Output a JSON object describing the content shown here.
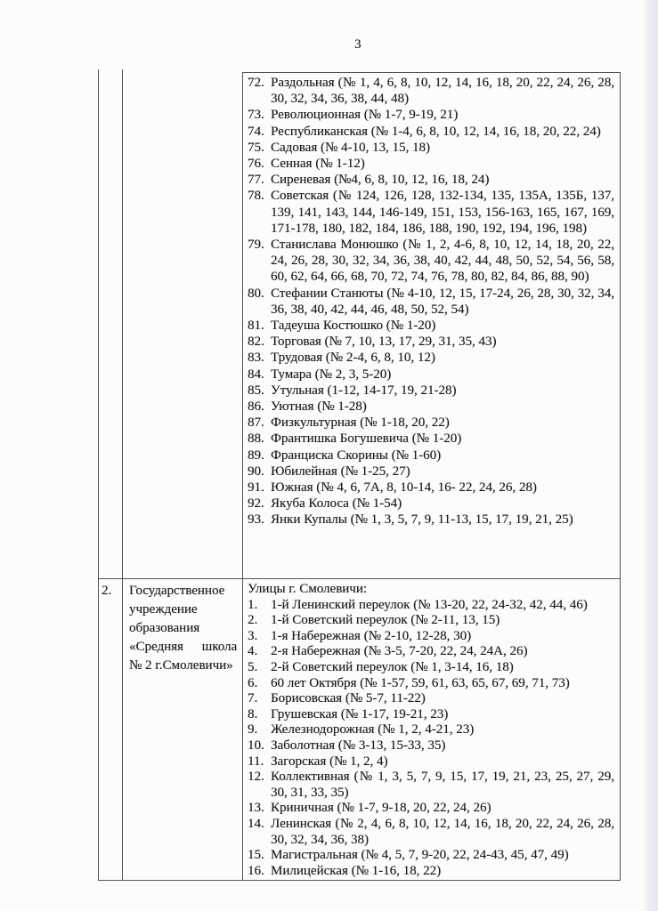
{
  "page": {
    "number": "3"
  },
  "table": {
    "row1": {
      "streets": [
        {
          "num": "72.",
          "text": "Раздольная (№ 1, 4, 6, 8, 10, 12, 14, 16, 18, 20, 22, 24, 26, 28, 30, 32, 34, 36, 38, 44, 48)"
        },
        {
          "num": "73.",
          "text": "Революционная (№ 1-7, 9-19, 21)"
        },
        {
          "num": "74.",
          "text": "Республиканская (№ 1-4, 6, 8, 10, 12, 14, 16, 18, 20, 22, 24)"
        },
        {
          "num": "75.",
          "text": "Садовая (№ 4-10, 13, 15, 18)"
        },
        {
          "num": "76.",
          "text": "Сенная (№ 1-12)"
        },
        {
          "num": "77.",
          "text": "Сиреневая (№4, 6, 8, 10, 12, 16, 18, 24)"
        },
        {
          "num": "78.",
          "text": "Советская (№ 124, 126, 128, 132-134, 135, 135А, 135Б, 137, 139, 141, 143, 144, 146-149, 151, 153, 156-163, 165, 167, 169, 171-178, 180, 182, 184, 186, 188, 190, 192, 194, 196, 198)"
        },
        {
          "num": "79.",
          "text": "Станислава Монюшко (№ 1, 2, 4-6, 8, 10, 12, 14, 18, 20, 22, 24, 26, 28, 30, 32, 34, 36, 38, 40, 42, 44, 48, 50, 52, 54, 56, 58, 60, 62, 64, 66, 68, 70, 72, 74, 76, 78, 80, 82, 84, 86, 88, 90)"
        },
        {
          "num": "80.",
          "text": "Стефании Станюты (№ 4-10, 12, 15, 17-24, 26, 28, 30, 32, 34, 36, 38, 40, 42, 44, 46, 48, 50, 52, 54)"
        },
        {
          "num": "81.",
          "text": "Тадеуша Костюшко (№ 1-20)"
        },
        {
          "num": "82.",
          "text": "Торговая (№ 7, 10, 13, 17, 29, 31, 35, 43)"
        },
        {
          "num": "83.",
          "text": "Трудовая (№ 2-4, 6, 8, 10, 12)"
        },
        {
          "num": "84.",
          "text": "Тумара (№ 2, 3, 5-20)"
        },
        {
          "num": "85.",
          "text": "Утульная (1-12, 14-17, 19, 21-28)"
        },
        {
          "num": "86.",
          "text": "Уютная (№ 1-28)"
        },
        {
          "num": "87.",
          "text": "Физкультурная (№ 1-18, 20, 22)"
        },
        {
          "num": "88.",
          "text": "Франтишка Богушевича (№ 1-20)"
        },
        {
          "num": "89.",
          "text": "Франциска Скорины (№ 1-60)"
        },
        {
          "num": "90.",
          "text": "Юбилейная (№ 1-25, 27)"
        },
        {
          "num": "91.",
          "text": "Южная (№ 4, 6, 7А, 8, 10-14, 16- 22, 24, 26, 28)"
        },
        {
          "num": "92.",
          "text": "Якуба Колоса (№ 1-54)"
        },
        {
          "num": "93.",
          "text": "Янки Купалы (№ 1, 3, 5, 7, 9, 11-13, 15, 17, 19, 21, 25)"
        }
      ]
    },
    "row2": {
      "index": "2.",
      "organization_lines": [
        "Государственное",
        "учреждение",
        "образования",
        "«Средняя школа",
        "№ 2 г.Смолевичи»"
      ],
      "streets_header": "Улицы г. Смолевичи:",
      "streets": [
        {
          "num": "1.",
          "text": "1-й Ленинский переулок (№ 13-20, 22, 24-32, 42, 44, 46)"
        },
        {
          "num": "2.",
          "text": "1-й Советский переулок (№ 2-11, 13, 15)"
        },
        {
          "num": "3.",
          "text": "1-я Набережная (№ 2-10, 12-28, 30)"
        },
        {
          "num": "4.",
          "text": "2-я Набережная (№ 3-5, 7-20, 22, 24, 24А, 26)"
        },
        {
          "num": "5.",
          "text": "2-й Советский переулок (№ 1, 3-14, 16, 18)"
        },
        {
          "num": "6.",
          "text": "60 лет Октября (№ 1-57, 59, 61, 63, 65, 67, 69, 71, 73)"
        },
        {
          "num": "7.",
          "text": "Борисовская (№ 5-7, 11-22)"
        },
        {
          "num": "8.",
          "text": "Грушевская (№ 1-17, 19-21, 23)"
        },
        {
          "num": "9.",
          "text": "Железнодорожная (№ 1, 2, 4-21, 23)"
        },
        {
          "num": "10.",
          "text": "Заболотная (№ 3-13, 15-33, 35)"
        },
        {
          "num": "11.",
          "text": "Загорская (№ 1, 2, 4)"
        },
        {
          "num": "12.",
          "text": "Коллективная (№ 1, 3, 5, 7, 9, 15, 17, 19, 21, 23, 25, 27, 29, 30, 31, 33, 35)"
        },
        {
          "num": "13.",
          "text": "Криничная (№ 1-7, 9-18, 20, 22, 24, 26)"
        },
        {
          "num": "14.",
          "text": "Ленинская (№ 2, 4, 6, 8, 10, 12, 14, 16, 18, 20, 22, 24, 26, 28, 30, 32, 34, 36, 38)"
        },
        {
          "num": "15.",
          "text": "Магистральная (№ 4, 5, 7, 9-20, 22, 24-43, 45, 47, 49)"
        },
        {
          "num": "16.",
          "text": "Милицейская (№ 1-16, 18, 22)"
        }
      ]
    }
  }
}
